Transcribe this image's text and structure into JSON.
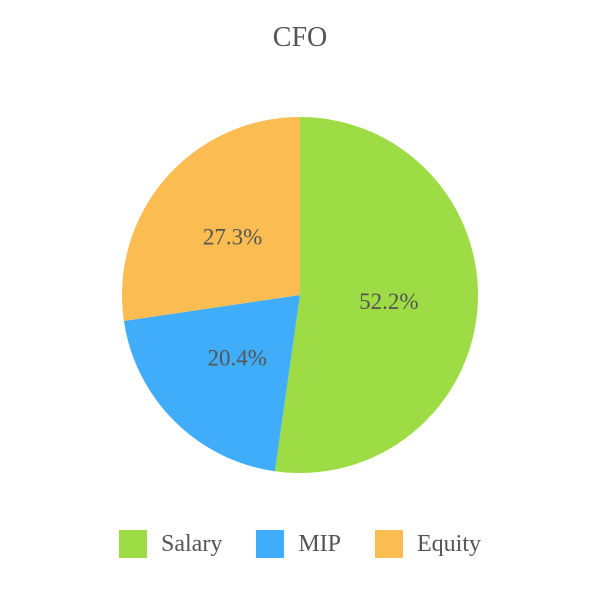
{
  "chart_data": {
    "type": "pie",
    "title": "CFO",
    "legend_position": "bottom",
    "slices": [
      {
        "name": "Salary",
        "value": 52.2,
        "label": "52.2%",
        "color": "#9ddc45"
      },
      {
        "name": "MIP",
        "value": 20.4,
        "label": "20.4%",
        "color": "#3fadfa"
      },
      {
        "name": "Equity",
        "value": 27.3,
        "label": "27.3%",
        "color": "#fbbd52"
      }
    ]
  }
}
